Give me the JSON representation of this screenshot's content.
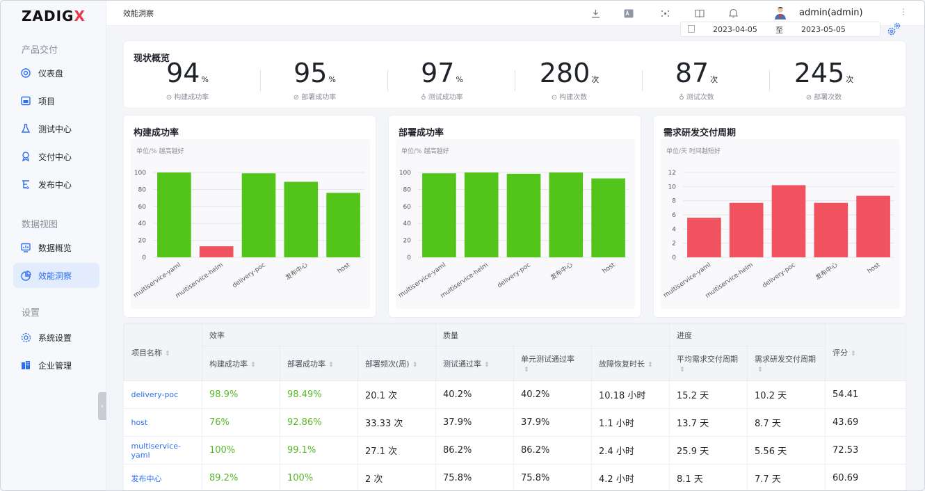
{
  "app": {
    "logo_text": "ZADIG",
    "logo_accent": "X"
  },
  "sidebar": {
    "sections": [
      {
        "title": "产品交付",
        "items": [
          {
            "label": "仪表盘",
            "icon": "dashboard-icon"
          },
          {
            "label": "项目",
            "icon": "project-icon"
          },
          {
            "label": "测试中心",
            "icon": "flask-icon"
          },
          {
            "label": "交付中心",
            "icon": "delivery-icon"
          },
          {
            "label": "发布中心",
            "icon": "release-icon"
          }
        ]
      },
      {
        "title": "数据视图",
        "items": [
          {
            "label": "数据概览",
            "icon": "chart-icon"
          },
          {
            "label": "效能洞察",
            "icon": "pie-icon",
            "active": true
          }
        ]
      },
      {
        "title": "设置",
        "items": [
          {
            "label": "系统设置",
            "icon": "gear-icon"
          },
          {
            "label": "企业管理",
            "icon": "building-icon"
          }
        ]
      }
    ],
    "collapse_glyph": "‹"
  },
  "topbar": {
    "breadcrumb": "效能洞察",
    "user": "admin(admin)",
    "more": "⋮"
  },
  "date_range": {
    "start": "2023-04-05",
    "separator": "至",
    "end": "2023-05-05"
  },
  "overview": {
    "title": "现状概览",
    "stats": [
      {
        "value": "94",
        "unit": "%",
        "label": "构建成功率"
      },
      {
        "value": "95",
        "unit": "%",
        "label": "部署成功率"
      },
      {
        "value": "97",
        "unit": "%",
        "label": "测试成功率"
      },
      {
        "value": "280",
        "unit": "次",
        "label": "构建次数"
      },
      {
        "value": "87",
        "unit": "次",
        "label": "测试次数"
      },
      {
        "value": "245",
        "unit": "次",
        "label": "部署次数"
      }
    ]
  },
  "chart_data": [
    {
      "type": "bar",
      "title": "构建成功率",
      "subtitle": "单位/% 越高越好",
      "categories": [
        "multiservice-yaml",
        "multiservice-helm",
        "delivery-poc",
        "发布中心",
        "host"
      ],
      "values": [
        100,
        13,
        99,
        89,
        76
      ],
      "colors": [
        "#52c41a",
        "#f0525f",
        "#52c41a",
        "#52c41a",
        "#52c41a"
      ],
      "ylim": [
        0,
        100
      ],
      "yticks": [
        0,
        20,
        40,
        60,
        80,
        100
      ]
    },
    {
      "type": "bar",
      "title": "部署成功率",
      "subtitle": "单位/% 越高越好",
      "categories": [
        "multiservice-yaml",
        "multiservice-helm",
        "delivery-poc",
        "发布中心",
        "host"
      ],
      "values": [
        99,
        100,
        98.5,
        100,
        93
      ],
      "colors": [
        "#52c41a",
        "#52c41a",
        "#52c41a",
        "#52c41a",
        "#52c41a"
      ],
      "ylim": [
        0,
        100
      ],
      "yticks": [
        0,
        20,
        40,
        60,
        80,
        100
      ]
    },
    {
      "type": "bar",
      "title": "需求研发交付周期",
      "subtitle": "单位/天 时间越短好",
      "categories": [
        "multiservice-yaml",
        "multiservice-helm",
        "delivery-poc",
        "发布中心",
        "host"
      ],
      "values": [
        5.6,
        7.7,
        10.2,
        7.7,
        8.7
      ],
      "colors": [
        "#f0525f",
        "#f0525f",
        "#f0525f",
        "#f0525f",
        "#f0525f"
      ],
      "ylim": [
        0,
        12
      ],
      "yticks": [
        0,
        2,
        4,
        6,
        8,
        10,
        12
      ]
    }
  ],
  "table": {
    "group_headers": {
      "project": "项目名称",
      "efficiency": "效率",
      "quality": "质量",
      "progress": "进度",
      "score": "评分"
    },
    "columns": [
      "构建成功率",
      "部署成功率",
      "部署频次(周)",
      "测试通过率",
      "单元测试通过率",
      "故障恢复时长",
      "平均需求交付周期",
      "需求研发交付周期"
    ],
    "sort_glyph": "⇕",
    "rows": [
      [
        "delivery-poc",
        "98.9%",
        "98.49%",
        "20.1 次",
        "40.2%",
        "40.2%",
        "10.18 小时",
        "15.2 天",
        "10.2 天",
        "54.41"
      ],
      [
        "host",
        "76%",
        "92.86%",
        "33.33 次",
        "37.9%",
        "37.9%",
        "1.1 小时",
        "13.7 天",
        "8.7 天",
        "43.69"
      ],
      [
        "multiservice-yaml",
        "100%",
        "99.1%",
        "27.1 次",
        "86.2%",
        "86.2%",
        "2.4 小时",
        "25.9 天",
        "5.56 天",
        "72.53"
      ],
      [
        "发布中心",
        "89.2%",
        "100%",
        "2 次",
        "75.8%",
        "75.8%",
        "4.2 小时",
        "8.1 天",
        "7.7 天",
        "60.69"
      ]
    ]
  }
}
